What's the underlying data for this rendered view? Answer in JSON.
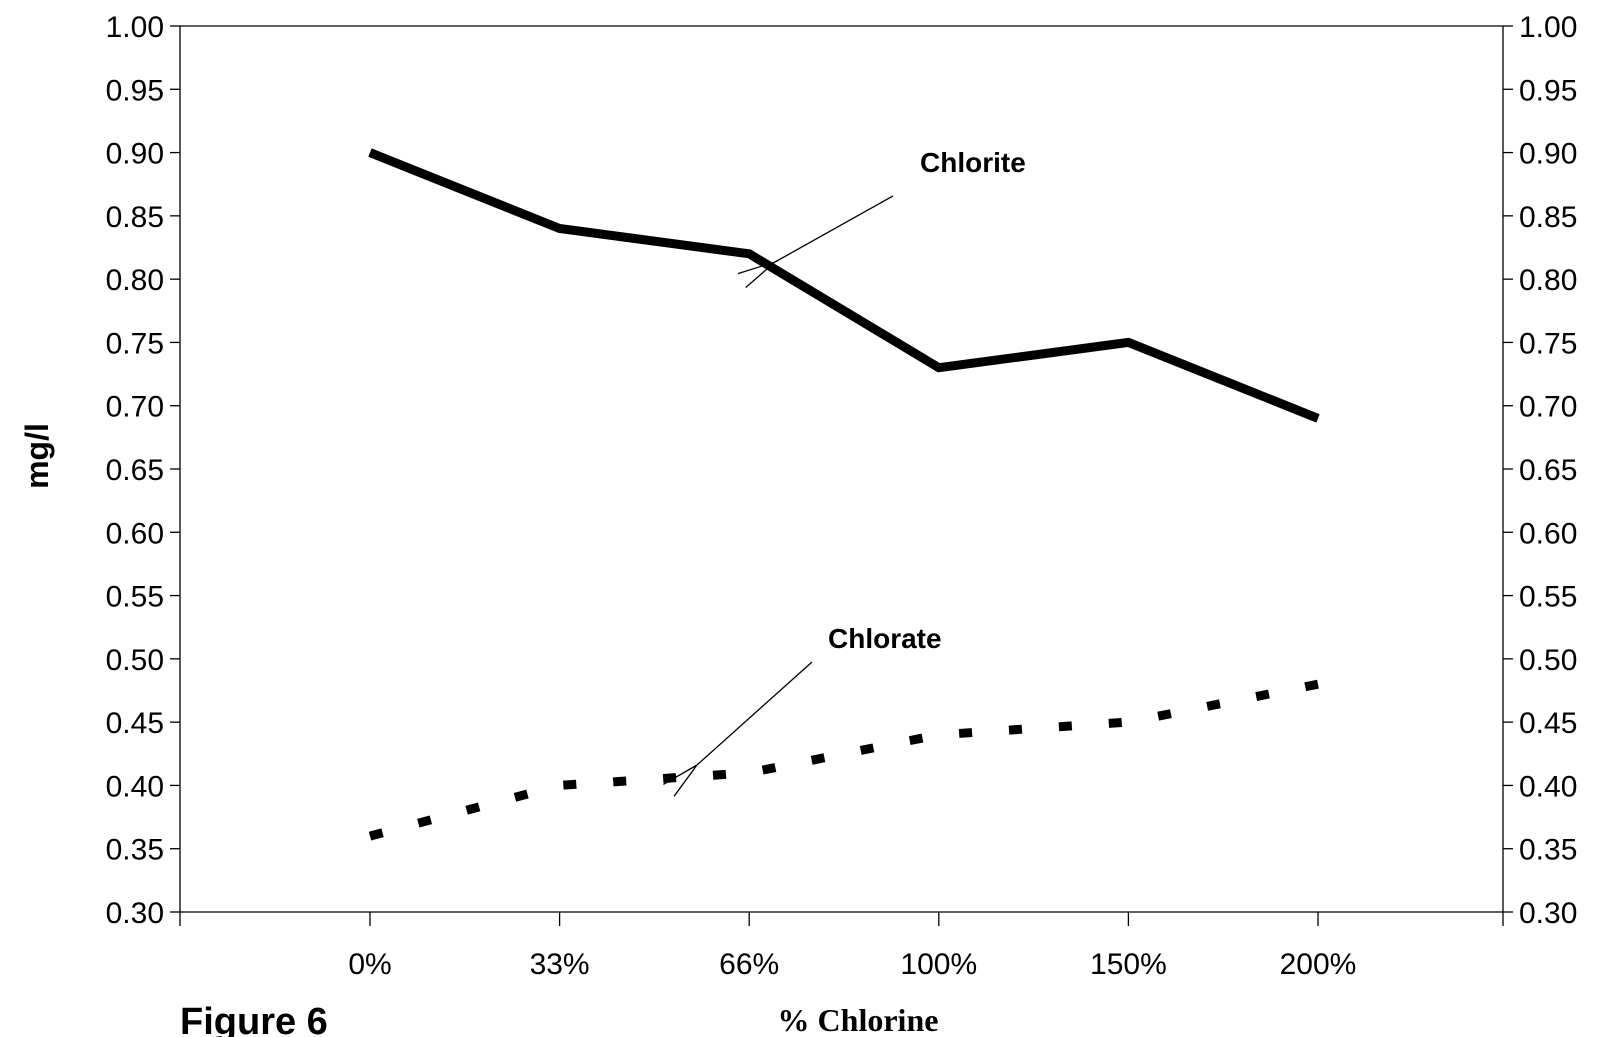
{
  "chart_data": {
    "type": "line",
    "categories": [
      "0%",
      "33%",
      "66%",
      "100%",
      "150%",
      "200%"
    ],
    "series": [
      {
        "name": "Chlorite",
        "values": [
          0.9,
          0.84,
          0.82,
          0.73,
          0.75,
          0.69
        ],
        "style": "solid",
        "color": "#000000"
      },
      {
        "name": "Chlorate",
        "values": [
          0.36,
          0.4,
          0.41,
          0.44,
          0.45,
          0.48
        ],
        "style": "dotted",
        "color": "#000000"
      }
    ],
    "ylabel": "mg/l",
    "xlabel": "% Chlorine",
    "ylim": [
      0.3,
      1.0
    ],
    "y_ticks": [
      "0.30",
      "0.35",
      "0.40",
      "0.45",
      "0.50",
      "0.55",
      "0.60",
      "0.65",
      "0.70",
      "0.75",
      "0.80",
      "0.85",
      "0.90",
      "0.95",
      "1.00"
    ],
    "secondary_y_axis": true,
    "grid": false,
    "annotations": [
      {
        "text": "Chlorite",
        "points_to_series": "Chlorite"
      },
      {
        "text": "Chlorate",
        "points_to_series": "Chlorate"
      }
    ],
    "caption": "Figure 6"
  }
}
